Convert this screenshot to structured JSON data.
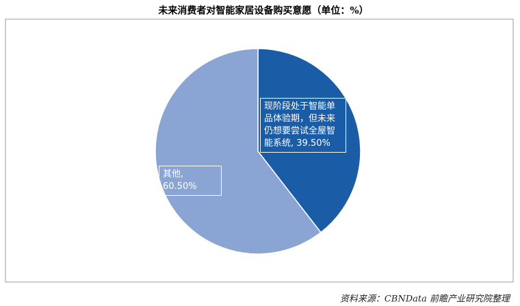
{
  "chart_data": {
    "type": "pie",
    "title": "未来消费者对智能家居设备购买意愿（单位：%）",
    "categories": [
      "现阶段处于智能单品体验期，但未来仍想要尝试全屋智能系统",
      "其他"
    ],
    "values": [
      39.5,
      60.5
    ],
    "value_labels": [
      "39.50%",
      "60.50%"
    ],
    "colors": [
      "#1b5ca6",
      "#8aa5d3"
    ],
    "source": "资料来源：CBNData 前瞻产业研究院整理"
  }
}
